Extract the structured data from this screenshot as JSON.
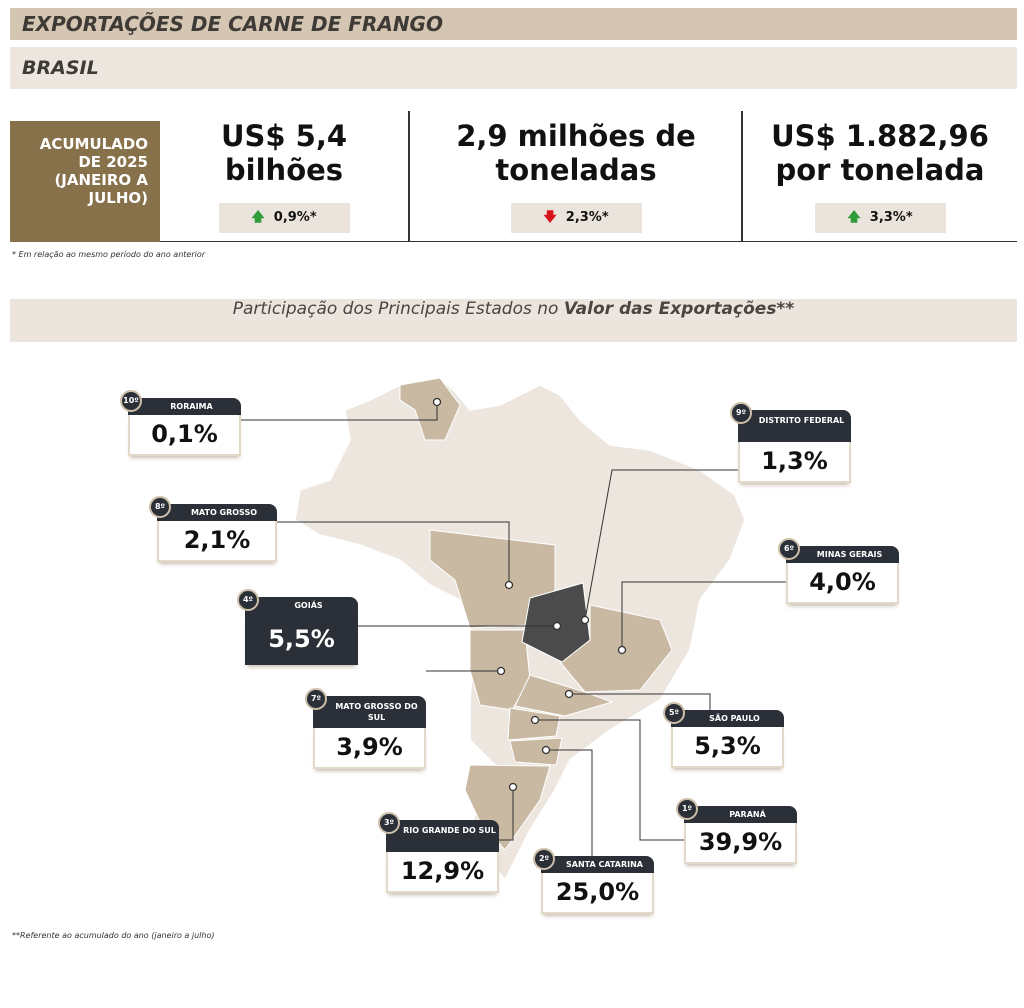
{
  "title": "EXPORTAÇÕES DE CARNE DE FRANGO",
  "subtitle": "BRASIL",
  "period_label": [
    "ACUMULADO",
    "DE 2025",
    "(JANEIRO A",
    "JULHO)"
  ],
  "kpis": [
    {
      "line1": "US$ 5,4",
      "line2": "bilhões",
      "change": "0,9%*",
      "direction": "up"
    },
    {
      "line1": "2,9 milhões de",
      "line2": "toneladas",
      "change": "2,3%*",
      "direction": "down"
    },
    {
      "line1": "US$ 1.882,96",
      "line2": "por tonelada",
      "change": "3,3%*",
      "direction": "up"
    }
  ],
  "footnote1": "* Em relação ao mesmo período do ano anterior",
  "section_title_pre": "Participação dos Principais Estados no ",
  "section_title_bold": "Valor das Exportações**",
  "states": [
    {
      "rank": "10º",
      "name": "RORAIMA",
      "share": "0,1%"
    },
    {
      "rank": "9º",
      "name": "DISTRITO FEDERAL",
      "share": "1,3%"
    },
    {
      "rank": "8º",
      "name": "MATO GROSSO",
      "share": "2,1%"
    },
    {
      "rank": "6º",
      "name": "MINAS GERAIS",
      "share": "4,0%"
    },
    {
      "rank": "4º",
      "name": "GOIÁS",
      "share": "5,5%"
    },
    {
      "rank": "7º",
      "name": "MATO GROSSO DO SUL",
      "share": "3,9%"
    },
    {
      "rank": "5º",
      "name": "SÃO PAULO",
      "share": "5,3%"
    },
    {
      "rank": "1º",
      "name": "PARANÁ",
      "share": "39,9%"
    },
    {
      "rank": "3º",
      "name": "RIO GRANDE DO SUL",
      "share": "12,9%"
    },
    {
      "rank": "2º",
      "name": "SANTA CATARINA",
      "share": "25,0%"
    }
  ],
  "footnote2": "**Referente  ao acumulado do ano (janeiro a julho)",
  "colors": {
    "brown": "#87714a",
    "up": "#2f9c3a",
    "down": "#d7141b",
    "card": "#2b2f37",
    "state": "#c9b9a3",
    "goias": "#4b4b4b"
  }
}
